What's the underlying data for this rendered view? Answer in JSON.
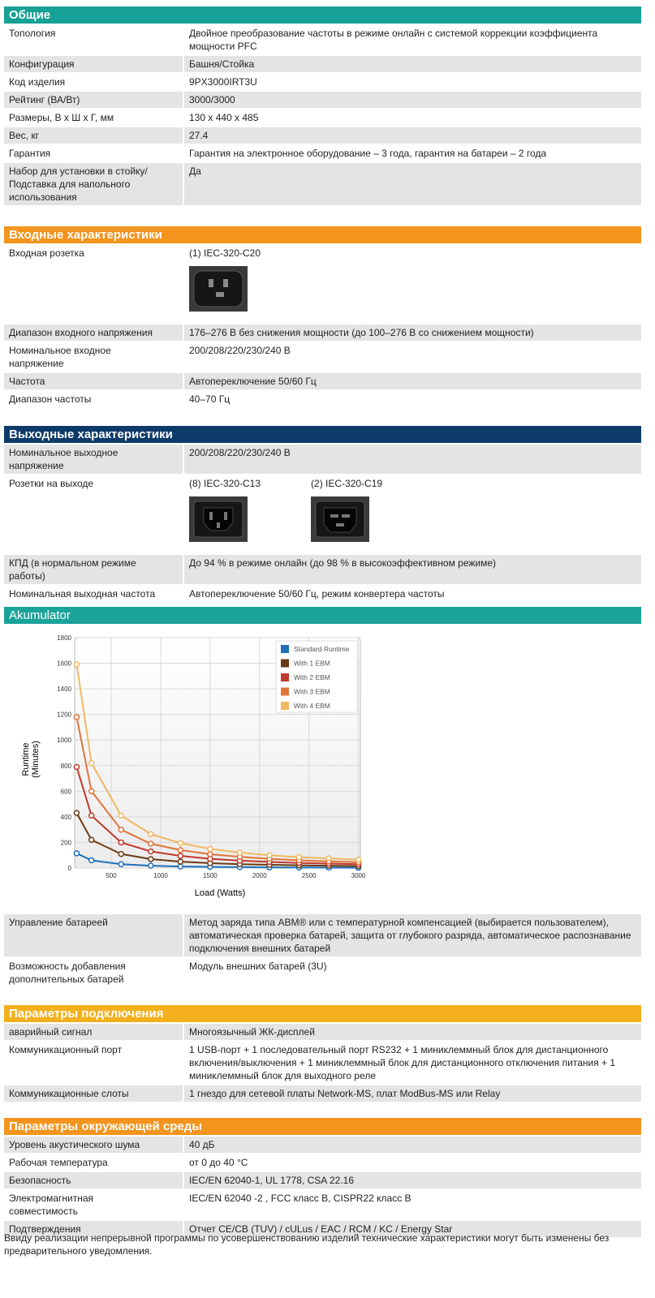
{
  "sections": [
    {
      "title": "Общие",
      "color": "#16a096",
      "rows": [
        {
          "label": "Топология",
          "value": "Двойное преобразование частоты в режиме онлайн с системой коррекции коэффициента мощности PFC"
        },
        {
          "label": "Конфигурация",
          "value": "Башня/Стойка"
        },
        {
          "label": "Код изделия",
          "value": "9PX3000IRT3U"
        },
        {
          "label": "Рейтинг (ВА/Вт)",
          "value": "3000/3000"
        },
        {
          "label": "Размеры, В x Ш x Г, мм",
          "value": "130 x 440 x 485"
        },
        {
          "label": "Вес, кг",
          "value": "27.4"
        },
        {
          "label": "Гарантия",
          "value": "Гарантия на электронное оборудование – 3 года, гарантия на батареи – 2 года"
        },
        {
          "label": "Набор для установки в стойку/ Подставка для напольного использования",
          "value": "Да"
        }
      ]
    },
    {
      "title": "Входные характеристики",
      "color": "#f3941e",
      "rows": [
        {
          "label": "Входная розетка",
          "outlets": [
            "(1) IEC-320-C20"
          ]
        },
        {
          "label": "Диапазон входного напряжения",
          "value": "176–276 В без снижения мощности (до 100–276 В со снижением мощности)"
        },
        {
          "label": "Номинальное входное напряжение",
          "value": "200/208/220/230/240 В"
        },
        {
          "label": "Частота",
          "value": "Автопереключение 50/60 Гц"
        },
        {
          "label": "Диапазон частоты",
          "value": "40–70 Гц"
        }
      ]
    },
    {
      "title": "Выходные характеристики",
      "color": "#0d3b69",
      "rows": [
        {
          "label": "Номинальное выходное напряжение",
          "value": "200/208/220/230/240 В"
        },
        {
          "label": "Розетки на выходе",
          "outlets": [
            "(8) IEC-320-C13",
            "(2) IEC-320-C19"
          ]
        },
        {
          "label": "КПД (в нормальном режиме работы)",
          "value": "До 94 % в режиме онлайн (до 98 % в высокоэффективном режиме)"
        },
        {
          "label": "Номинальная выходная частота",
          "value": "Автопереключение 50/60 Гц, режим конвертера частоты"
        }
      ]
    },
    {
      "title": "Akumulator",
      "color": "#1aa39a",
      "rows": [
        {
          "label": "Управление батареей",
          "value": "Метод заряда типа ABM® или с температурной компенсацией (выбирается пользователем), автоматическая проверка батарей, защита от глубокого разряда, автоматическое распознавание подключения внешних батарей"
        },
        {
          "label": "Возможность добавления дополнительных батарей",
          "value": "Модуль внешних батарей (3U)"
        }
      ]
    },
    {
      "title": "Параметры подключения",
      "color": "#f4b01c",
      "rows": [
        {
          "label": "аварийный сигнал",
          "value": "Многоязычный ЖК-дисплей"
        },
        {
          "label": "Коммуникационный порт",
          "value": "1 USB-порт + 1 последовательный порт RS232 + 1 миниклеммный блок для дистанционного включения/выключения + 1 миниклеммный блок для дистанционного отключения питания + 1 миниклеммный блок для выходного реле"
        },
        {
          "label": "Коммуникационные слоты",
          "value": "1 гнездо для сетевой платы Network-MS, плат ModBus-MS или Relay"
        }
      ]
    },
    {
      "title": "Параметры окружающей среды",
      "color": "#f3941e",
      "rows": [
        {
          "label": "Уровень акустического шума",
          "value": "40 дБ"
        },
        {
          "label": "Рабочая температура",
          "value": "от 0 до 40 °C"
        },
        {
          "label": "Безопасность",
          "value": "IEC/EN 62040-1, UL 1778, CSA 22.16"
        },
        {
          "label": "Электромагнитная совместимость",
          "value": "IEC/EN 62040 -2 , FCC класс B, CISPR22 класс B"
        },
        {
          "label": "Подтверждения",
          "value": "Отчет CE/CB (TUV) / cULus / EAC / RCM / KC / Energy Star"
        }
      ]
    }
  ],
  "chart_data": {
    "type": "line",
    "x_label": "Load (Watts)",
    "y_label": [
      "Runtime",
      "(Minutes)"
    ],
    "x": [
      150,
      300,
      600,
      900,
      1200,
      1500,
      1800,
      2100,
      2400,
      2700,
      3000
    ],
    "xlim": [
      130,
      3020
    ],
    "xticks": [
      500,
      1000,
      1500,
      2000,
      2500,
      3000
    ],
    "ylim": [
      0,
      1800
    ],
    "yticks": [
      0,
      200,
      400,
      600,
      800,
      1000,
      1200,
      1400,
      1600,
      1800
    ],
    "grid": true,
    "legend": "top-right",
    "series": [
      {
        "name": "Standard Runtime",
        "color": "#1f6fb8",
        "values": [
          115,
          60,
          30,
          18,
          12,
          9,
          7,
          5,
          4,
          3,
          2
        ]
      },
      {
        "name": "With 1 EBM",
        "color": "#6b3a12",
        "values": [
          430,
          220,
          110,
          70,
          50,
          38,
          30,
          25,
          21,
          18,
          15
        ]
      },
      {
        "name": "With 2 EBM",
        "color": "#c0392b",
        "values": [
          790,
          410,
          200,
          130,
          95,
          72,
          58,
          48,
          40,
          35,
          30
        ]
      },
      {
        "name": "With 3 EBM",
        "color": "#e0743a",
        "values": [
          1180,
          600,
          300,
          190,
          140,
          108,
          88,
          72,
          60,
          52,
          46
        ]
      },
      {
        "name": "With 4 EBM",
        "color": "#f0b862",
        "values": [
          1590,
          820,
          410,
          265,
          195,
          150,
          120,
          100,
          85,
          75,
          65
        ]
      }
    ]
  },
  "footer": "Ввиду реализации непрерывной программы по усовершенствованию изделий технические характеристики могут быть изменены без предварительного уведомления."
}
